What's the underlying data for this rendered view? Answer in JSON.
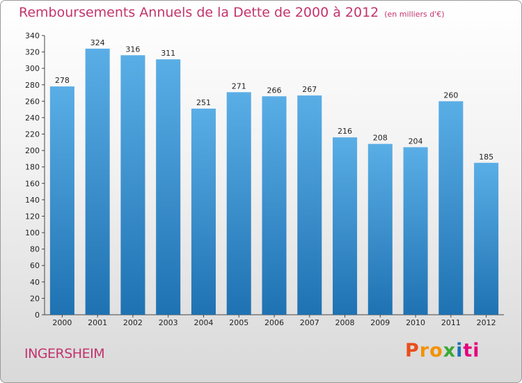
{
  "header": {
    "title": "Remboursements Annuels de la Dette de 2000 à 2012",
    "subtitle": "(en milliers d'€)"
  },
  "footer": {
    "city": "INGERSHEIM",
    "logo_letters": [
      "P",
      "r",
      "o",
      "x",
      "i",
      "ti"
    ]
  },
  "colors": {
    "accent": "#c2346d",
    "bar_light": "#5aaee6",
    "bar_dark": "#1f72b2"
  },
  "chart_data": {
    "type": "bar",
    "title": "Remboursements Annuels de la Dette de 2000 à 2012",
    "subtitle": "(en milliers d'€)",
    "xlabel": "",
    "ylabel": "",
    "categories": [
      "2000",
      "2001",
      "2002",
      "2003",
      "2004",
      "2005",
      "2006",
      "2007",
      "2008",
      "2009",
      "2010",
      "2011",
      "2012"
    ],
    "values": [
      278,
      324,
      316,
      311,
      251,
      271,
      266,
      267,
      216,
      208,
      204,
      260,
      185
    ],
    "ylim": [
      0,
      340
    ],
    "ytick_step": 20,
    "grid": false
  }
}
